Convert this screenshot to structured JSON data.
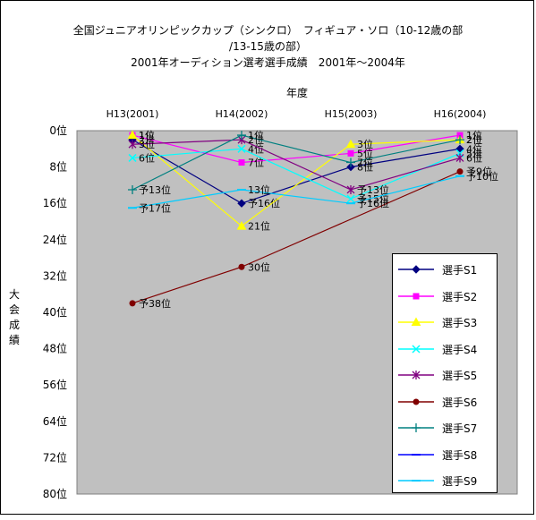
{
  "chart_data": {
    "type": "line",
    "title_lines": [
      "全国ジュニアオリンピックカップ（シンクロ）　フィギュア・ソロ（10-12歳の部",
      "/13-15歳の部）",
      "2001年オーディション選考選手成績　2001年〜2004年"
    ],
    "xlabel": "年度",
    "ylabel": "大会成績",
    "categories": [
      "H13(2001)",
      "H14(2002)",
      "H15(2003)",
      "H16(2004)"
    ],
    "y_ticks": [
      "0位",
      "8位",
      "16位",
      "24位",
      "32位",
      "40位",
      "48位",
      "56位",
      "64位",
      "72位",
      "80位"
    ],
    "ylim": [
      0,
      80
    ],
    "y_inverted": true,
    "grid": "none",
    "legend_position": "bottom-right",
    "series": [
      {
        "name": "選手S1",
        "color": "#000080",
        "marker": "diamond",
        "values": [
          2,
          16,
          8,
          4
        ],
        "labels": [
          "2位",
          "予16位",
          "8位",
          "4位"
        ]
      },
      {
        "name": "選手S2",
        "color": "#ff00ff",
        "marker": "square",
        "values": [
          1,
          7,
          5,
          1
        ],
        "labels": [
          "1位",
          "7位",
          "5位",
          "1位"
        ]
      },
      {
        "name": "選手S3",
        "color": "#ffff00",
        "marker": "triangle",
        "values": [
          1,
          21,
          3,
          2
        ],
        "labels": [
          "1位",
          "21位",
          "3位",
          "2位"
        ]
      },
      {
        "name": "選手S4",
        "color": "#00ffff",
        "marker": "x",
        "values": [
          6,
          4,
          15,
          5
        ],
        "labels": [
          "6位",
          "4位",
          "予15位",
          "5位"
        ]
      },
      {
        "name": "選手S5",
        "color": "#800080",
        "marker": "asterisk",
        "values": [
          3,
          2,
          13,
          6
        ],
        "labels": [
          "3位",
          "2位",
          "予13位",
          "6位"
        ]
      },
      {
        "name": "選手S6",
        "color": "#800000",
        "marker": "circle",
        "values": [
          38,
          30,
          null,
          9
        ],
        "labels": [
          "予38位",
          "30位",
          "",
          "予9位"
        ]
      },
      {
        "name": "選手S7",
        "color": "#008080",
        "marker": "plus",
        "values": [
          13,
          1,
          7,
          2
        ],
        "labels": [
          "予13位",
          "1位",
          "7位",
          "2位"
        ]
      },
      {
        "name": "選手S8",
        "color": "#0000ff",
        "marker": "dash",
        "values": [
          null,
          null,
          null,
          null
        ],
        "labels": [
          "",
          "",
          "",
          ""
        ]
      },
      {
        "name": "選手S9",
        "color": "#00ccff",
        "marker": "dash",
        "values": [
          17,
          13,
          16,
          10
        ],
        "labels": [
          "予17位",
          "13位",
          "予16位",
          "予10位"
        ]
      }
    ]
  }
}
